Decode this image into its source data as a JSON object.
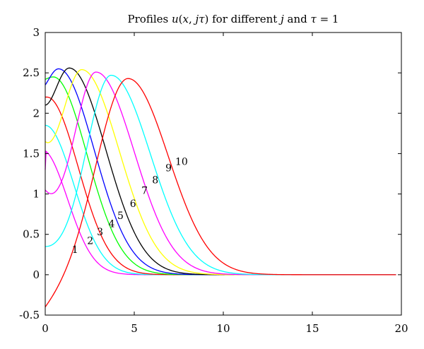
{
  "chart_data": {
    "type": "line",
    "title": {
      "prefix": "Profiles ",
      "func": "u",
      "args_open": "(",
      "var_x": "x",
      "sep": ", ",
      "var_j": "j",
      "var_tau": "τ",
      "args_close": ")",
      "middle": " for different ",
      "j_word": "j",
      "and_word": " and ",
      "tau_word": "τ",
      "suffix": " = 1"
    },
    "xlabel": "",
    "ylabel": "",
    "xlim": [
      0,
      20
    ],
    "ylim": [
      -0.5,
      3
    ],
    "xticks": [
      "0",
      "5",
      "10",
      "15",
      "20"
    ],
    "yticks": [
      "-0.5",
      "0",
      "0.5",
      "1",
      "1.5",
      "2",
      "2.5",
      "3"
    ],
    "grid": false,
    "colors": [
      "#ff00ff",
      "#00ffff",
      "#ff0000",
      "#00ff00",
      "#0000ff",
      "#000000",
      "#ffff00",
      "#ff00ff",
      "#00ffff",
      "#ff0000"
    ],
    "series": [
      {
        "label": "1",
        "color": "#ff00ff",
        "peak": [
          -0.2,
          1.55
        ],
        "s_left": 1.0,
        "s_right": 1.45,
        "label_at": [
          1.5,
          0.27
        ]
      },
      {
        "label": "2",
        "color": "#00ffff",
        "peak": [
          0.0,
          1.85
        ],
        "s_left": 1.0,
        "s_right": 1.6,
        "label_at": [
          2.35,
          0.38
        ]
      },
      {
        "label": "3",
        "color": "#ff0000",
        "peak": [
          0.1,
          2.2
        ],
        "s_left": 1.0,
        "s_right": 1.75,
        "label_at": [
          2.9,
          0.49
        ]
      },
      {
        "label": "4",
        "color": "#00ff00",
        "peak": [
          0.45,
          2.45
        ],
        "s_left": 1.0,
        "s_right": 1.9,
        "label_at": [
          3.55,
          0.59
        ]
      },
      {
        "label": "5",
        "color": "#0000ff",
        "peak": [
          0.75,
          2.55
        ],
        "s_left": 1.0,
        "s_right": 2.0,
        "label_at": [
          4.05,
          0.69
        ]
      },
      {
        "label": "6",
        "color": "#000000",
        "peak": [
          1.35,
          2.56
        ],
        "s_left": 1.1,
        "s_right": 2.05,
        "label_at": [
          4.75,
          0.84
        ]
      },
      {
        "label": "7",
        "color": "#ffff00",
        "peak": [
          2.05,
          2.54
        ],
        "s_left": 1.2,
        "s_right": 2.1,
        "label_at": [
          5.4,
          1.0
        ]
      },
      {
        "label": "8",
        "color": "#ff00ff",
        "peak": [
          2.85,
          2.51
        ],
        "s_left": 1.25,
        "s_right": 2.15,
        "label_at": [
          6.0,
          1.13
        ]
      },
      {
        "label": "9",
        "color": "#00ffff",
        "peak": [
          3.7,
          2.47
        ],
        "s_left": 1.4,
        "s_right": 2.2,
        "label_at": [
          6.75,
          1.28
        ]
      },
      {
        "label": "10",
        "color": "#ff0000",
        "peak": [
          4.65,
          2.43
        ],
        "s_left": 1.75,
        "s_right": 2.25,
        "label_at": [
          7.3,
          1.36
        ]
      }
    ],
    "start_values": [
      1.3,
      1.85,
      2.2,
      2.42,
      2.35,
      2.1,
      1.65,
      1.05,
      0.35,
      -0.4
    ]
  }
}
